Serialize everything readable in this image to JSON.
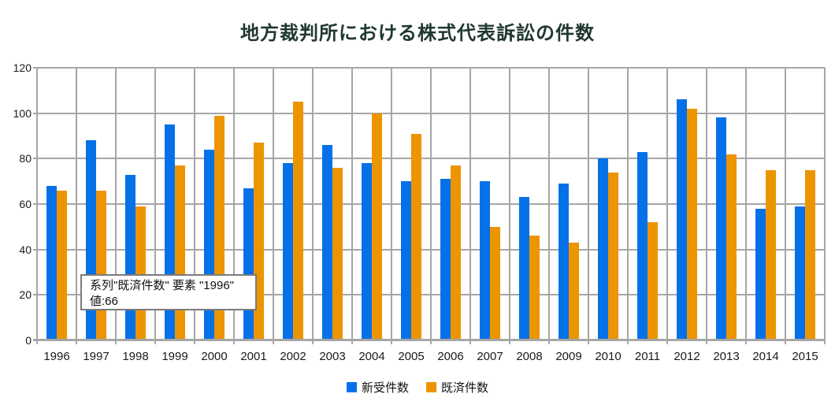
{
  "chart_data": {
    "type": "bar",
    "title": "地方裁判所における株式代表訴訟の件数",
    "categories": [
      "1996",
      "1997",
      "1998",
      "1999",
      "2000",
      "2001",
      "2002",
      "2003",
      "2004",
      "2005",
      "2006",
      "2007",
      "2008",
      "2009",
      "2010",
      "2011",
      "2012",
      "2013",
      "2014",
      "2015"
    ],
    "series": [
      {
        "name": "新受件数",
        "color": "#0571e8",
        "values": [
          68,
          88,
          73,
          95,
          84,
          67,
          78,
          86,
          78,
          70,
          71,
          70,
          63,
          69,
          80,
          83,
          106,
          98,
          58,
          59
        ]
      },
      {
        "name": "既済件数",
        "color": "#ec9500",
        "values": [
          66,
          66,
          59,
          77,
          99,
          87,
          105,
          76,
          100,
          91,
          77,
          50,
          46,
          43,
          74,
          52,
          102,
          82,
          75,
          75
        ]
      }
    ],
    "xlabel": "",
    "ylabel": "",
    "ylim": [
      0,
      120
    ],
    "yticks": [
      0,
      20,
      40,
      60,
      80,
      100,
      120
    ],
    "grid": true,
    "legend_position": "bottom"
  },
  "tooltip": {
    "line1": "系列\"既済件数\" 要素 \"1996\"",
    "line2": "値:66"
  },
  "colors": {
    "series_new": "#0571e8",
    "series_resolved": "#ec9500",
    "gridline": "#a6a6a6",
    "title_text": "#20382f",
    "axis_text": "#1a1a1a",
    "tooltip_border": "#7b7b7b",
    "background": "#ffffff"
  }
}
